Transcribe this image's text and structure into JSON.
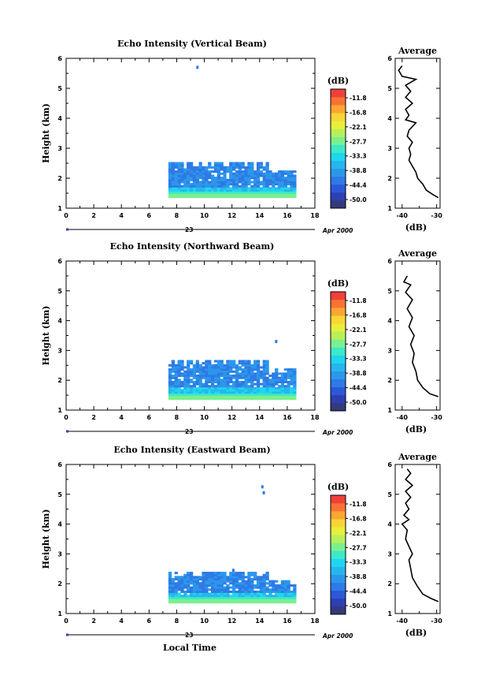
{
  "figure": {
    "local_time_label": "Local Time",
    "colors": {
      "colorbar": [
        "#353a7a",
        "#2d3fb3",
        "#2c58d8",
        "#2e7ae6",
        "#2c97ea",
        "#26b6ee",
        "#1fd6ef",
        "#3ee8c8",
        "#7af08e",
        "#b8f05a",
        "#e8ee3a",
        "#f9d634",
        "#fba632",
        "#f87234",
        "#f0403a"
      ]
    },
    "panels": [
      {
        "title": "Echo Intensity (Vertical Beam)",
        "avg_title": "Average"
      },
      {
        "title": "Echo Intensity (Northward Beam)",
        "avg_title": "Average"
      },
      {
        "title": "Echo Intensity (Eastward Beam)",
        "avg_title": "Average"
      }
    ]
  },
  "chart_data": [
    {
      "type": "heatmap",
      "title": "Echo Intensity (Vertical Beam)",
      "ylabel": "Height (km)",
      "xlim": [
        0,
        18
      ],
      "ylim": [
        1,
        6
      ],
      "xticks": [
        0,
        2,
        4,
        6,
        8,
        10,
        12,
        14,
        16,
        18
      ],
      "yticks": [
        1,
        2,
        3,
        4,
        5,
        6
      ],
      "date_day": "23",
      "date_month": "Apr 2000",
      "colorbar": {
        "unit": "(dB)",
        "ticks": [
          "-11.8",
          "-16.8",
          "-22.1",
          "-27.7",
          "-33.3",
          "-38.8",
          "-44.4",
          "-50.0"
        ]
      },
      "echo_region": {
        "time_start": 7.4,
        "time_end": 16.6,
        "height_bottom": 1.35,
        "height_top": 2.5
      },
      "isolated_echo": [
        {
          "time": 9.5,
          "height": 5.7
        }
      ],
      "avg_profile": {
        "title": "Average",
        "xlabel": "(dB)",
        "xlim": [
          -42,
          -29
        ],
        "xticks": [
          -40,
          -30
        ],
        "ylim": [
          1,
          6
        ],
        "points": [
          [
            -29.5,
            1.35
          ],
          [
            -31,
            1.45
          ],
          [
            -33,
            1.6
          ],
          [
            -34,
            1.8
          ],
          [
            -35.5,
            2.0
          ],
          [
            -36,
            2.2
          ],
          [
            -37,
            2.4
          ],
          [
            -38,
            2.6
          ],
          [
            -37.5,
            2.8
          ],
          [
            -38,
            3.0
          ],
          [
            -37,
            3.2
          ],
          [
            -38.5,
            3.4
          ],
          [
            -38,
            3.6
          ],
          [
            -36,
            3.85
          ],
          [
            -39,
            3.95
          ],
          [
            -38,
            4.1
          ],
          [
            -39,
            4.3
          ],
          [
            -37,
            4.5
          ],
          [
            -39,
            4.7
          ],
          [
            -37.5,
            4.9
          ],
          [
            -39,
            5.1
          ],
          [
            -36,
            5.3
          ],
          [
            -40,
            5.4
          ],
          [
            -41,
            5.6
          ],
          [
            -40,
            5.75
          ]
        ]
      }
    },
    {
      "type": "heatmap",
      "title": "Echo Intensity (Northward Beam)",
      "ylabel": "Height (km)",
      "xlim": [
        0,
        18
      ],
      "ylim": [
        1,
        6
      ],
      "xticks": [
        0,
        2,
        4,
        6,
        8,
        10,
        12,
        14,
        16,
        18
      ],
      "yticks": [
        1,
        2,
        3,
        4,
        5,
        6
      ],
      "date_day": "23",
      "date_month": "Apr 2000",
      "colorbar": {
        "unit": "(dB)",
        "ticks": [
          "-11.8",
          "-16.8",
          "-22.1",
          "-27.7",
          "-33.3",
          "-38.8",
          "-44.4",
          "-50.0"
        ]
      },
      "echo_region": {
        "time_start": 7.4,
        "time_end": 16.6,
        "height_bottom": 1.35,
        "height_top": 2.65
      },
      "isolated_echo": [
        {
          "time": 15.2,
          "height": 3.3
        }
      ],
      "avg_profile": {
        "title": "Average",
        "xlabel": "(dB)",
        "xlim": [
          -42,
          -29
        ],
        "xticks": [
          -40,
          -30
        ],
        "ylim": [
          1,
          6
        ],
        "points": [
          [
            -29.5,
            1.45
          ],
          [
            -32,
            1.55
          ],
          [
            -34,
            1.75
          ],
          [
            -35.5,
            2.0
          ],
          [
            -36,
            2.3
          ],
          [
            -37,
            2.6
          ],
          [
            -36.5,
            2.9
          ],
          [
            -37.5,
            3.2
          ],
          [
            -36.5,
            3.5
          ],
          [
            -38,
            3.8
          ],
          [
            -37,
            4.1
          ],
          [
            -38.5,
            4.4
          ],
          [
            -37,
            4.7
          ],
          [
            -39,
            4.95
          ],
          [
            -37.5,
            5.2
          ],
          [
            -39.5,
            5.3
          ],
          [
            -38.5,
            5.5
          ]
        ]
      }
    },
    {
      "type": "heatmap",
      "title": "Echo Intensity (Eastward Beam)",
      "ylabel": "Height (km)",
      "xlim": [
        0,
        18
      ],
      "ylim": [
        1,
        6
      ],
      "xticks": [
        0,
        2,
        4,
        6,
        8,
        10,
        12,
        14,
        16,
        18
      ],
      "yticks": [
        1,
        2,
        3,
        4,
        5,
        6
      ],
      "date_day": "23",
      "date_month": "Apr 2000",
      "colorbar": {
        "unit": "(dB)",
        "ticks": [
          "-11.8",
          "-16.8",
          "-22.1",
          "-27.7",
          "-33.3",
          "-38.8",
          "-44.4",
          "-50.0"
        ]
      },
      "echo_region": {
        "time_start": 7.4,
        "time_end": 16.6,
        "height_bottom": 1.35,
        "height_top": 2.4
      },
      "isolated_echo": [
        {
          "time": 14.2,
          "height": 5.25
        },
        {
          "time": 14.3,
          "height": 5.05
        },
        {
          "time": 12.1,
          "height": 2.45
        }
      ],
      "avg_profile": {
        "title": "Average",
        "xlabel": "(dB)",
        "xlim": [
          -42,
          -29
        ],
        "xticks": [
          -40,
          -30
        ],
        "ylim": [
          1,
          6
        ],
        "points": [
          [
            -29.5,
            1.4
          ],
          [
            -31.5,
            1.5
          ],
          [
            -34,
            1.65
          ],
          [
            -35.5,
            1.9
          ],
          [
            -37,
            2.2
          ],
          [
            -37.5,
            2.5
          ],
          [
            -38,
            2.8
          ],
          [
            -37,
            3.0
          ],
          [
            -38,
            3.25
          ],
          [
            -39,
            3.5
          ],
          [
            -38.5,
            3.8
          ],
          [
            -40,
            4.0
          ],
          [
            -38,
            4.15
          ],
          [
            -39.5,
            4.3
          ],
          [
            -38,
            4.5
          ],
          [
            -39,
            4.7
          ],
          [
            -37.5,
            4.9
          ],
          [
            -39,
            5.1
          ],
          [
            -37,
            5.3
          ],
          [
            -39,
            5.5
          ],
          [
            -37.5,
            5.7
          ],
          [
            -38.5,
            5.85
          ]
        ]
      }
    }
  ]
}
